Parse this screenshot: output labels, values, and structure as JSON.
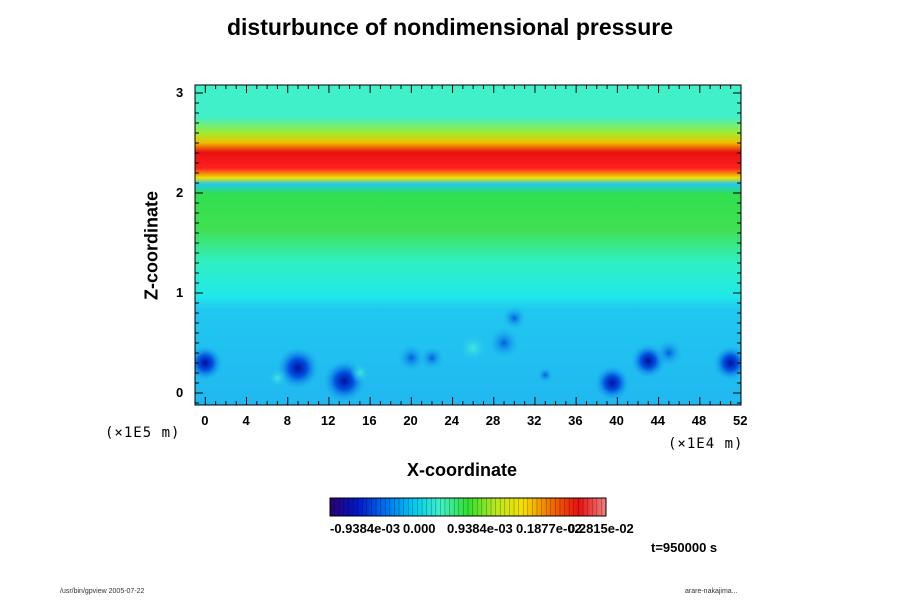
{
  "title": "disturbunce of nondimensional pressure",
  "chart_data": {
    "type": "heatmap",
    "title": "disturbunce of nondimensional pressure",
    "xlabel": "X-coordinate",
    "ylabel": "Z-coordinate",
    "x_unit": "(×1E4 m)",
    "y_unit": "(×1E5 m)",
    "xlim": [
      -1,
      52
    ],
    "ylim": [
      -0.12,
      3.08
    ],
    "x_ticks": [
      0,
      4,
      8,
      12,
      16,
      20,
      24,
      28,
      32,
      36,
      40,
      44,
      48,
      52
    ],
    "y_ticks": [
      0,
      1,
      2,
      3
    ],
    "colorscale": [
      "#2a0070",
      "#0018c8",
      "#0070f0",
      "#00c8f0",
      "#40f0c8",
      "#30e030",
      "#b8e820",
      "#f8e000",
      "#f07000",
      "#e81010",
      "#f08080"
    ],
    "colorbar_labels": [
      "-0.9384e-03",
      "0.000",
      "0.9384e-03",
      "0.1877e-02",
      "0.2815e-02"
    ],
    "bands": [
      {
        "z_range": [
          2.9,
          3.08
        ],
        "level": "light green-cyan"
      },
      {
        "z_range": [
          2.2,
          2.45
        ],
        "level": "max (red)"
      },
      {
        "z_range": [
          1.75,
          2.1
        ],
        "level": "green"
      },
      {
        "z_range": [
          1.0,
          1.75
        ],
        "level": "cyan"
      },
      {
        "z_range": [
          -0.12,
          1.0
        ],
        "level": "light blue"
      }
    ],
    "minima": [
      {
        "x": 9,
        "z": 0.25
      },
      {
        "x": 13.5,
        "z": 0.12
      },
      {
        "x": 39.5,
        "z": 0.1
      },
      {
        "x": 0,
        "z": 0.3
      },
      {
        "x": 51,
        "z": 0.3
      },
      {
        "x": 43,
        "z": 0.32
      }
    ],
    "grid": false
  },
  "time_label": "t=950000 s",
  "footer_left": "/usr/bin/gpview 2005-07-22",
  "footer_right": "arare-nakajima..."
}
